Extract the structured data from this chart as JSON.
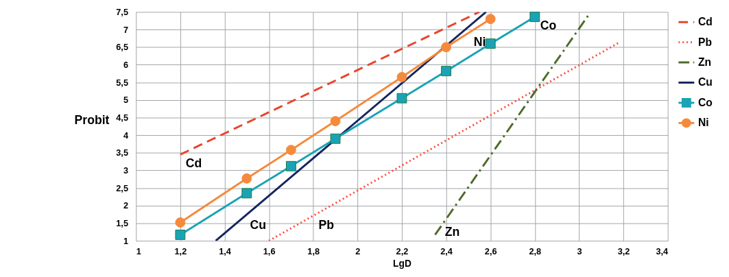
{
  "chart_data": {
    "type": "line",
    "xlabel": "LgD",
    "ylabel": "Probit",
    "xlim": [
      1,
      3.4
    ],
    "ylim": [
      1,
      7.5
    ],
    "xticks": [
      1,
      {
        "value": 1.2,
        "label": "1,2"
      },
      {
        "value": 1.4,
        "label": "1,4"
      },
      {
        "value": 1.6,
        "label": "1,6"
      },
      {
        "value": 1.8,
        "label": "1,8"
      },
      2,
      {
        "value": 2.2,
        "label": "2,2"
      },
      {
        "value": 2.4,
        "label": "2,4"
      },
      {
        "value": 2.6,
        "label": "2,6"
      },
      {
        "value": 2.8,
        "label": "2,8"
      },
      3,
      {
        "value": 3.2,
        "label": "3,2"
      },
      {
        "value": 3.4,
        "label": "3,4"
      }
    ],
    "yticks": [
      1,
      {
        "value": 1.5,
        "label": "1,5"
      },
      2,
      {
        "value": 2.5,
        "label": "2,5"
      },
      3,
      {
        "value": 3.5,
        "label": "3,5"
      },
      4,
      {
        "value": 4.5,
        "label": "4,5"
      },
      5,
      {
        "value": 5.5,
        "label": "5,5"
      },
      6,
      {
        "value": 6.5,
        "label": "6,5"
      },
      7,
      {
        "value": 7.5,
        "label": "7,5"
      }
    ],
    "grid": true,
    "legend": "right",
    "series": [
      {
        "name": "Cd",
        "color": "#e8452c",
        "line_style": "dashed",
        "marker": "none",
        "x": [
          1.2,
          2.55
        ],
        "values": [
          3.45,
          7.5
        ]
      },
      {
        "name": "Pb",
        "color": "#ff4a3a",
        "line_style": "dotted",
        "marker": "none",
        "x": [
          1.6,
          3.18
        ],
        "values": [
          1,
          6.63
        ]
      },
      {
        "name": "Zn",
        "color": "#4e6b2a",
        "line_style": "dashdot",
        "marker": "none",
        "x": [
          2.35,
          3.04
        ],
        "values": [
          1.17,
          7.39
        ]
      },
      {
        "name": "Cu",
        "color": "#14265e",
        "line_style": "solid",
        "marker": "none",
        "x": [
          1.36,
          2.58
        ],
        "values": [
          1,
          7.5
        ]
      },
      {
        "name": "Co",
        "color": "#1aa3b5",
        "line_style": "solid",
        "marker": "square",
        "x": [
          1.2,
          1.5,
          1.7,
          1.9,
          2.2,
          2.4,
          2.6,
          2.8
        ],
        "values": [
          1.17,
          2.35,
          3.12,
          3.9,
          5.05,
          5.82,
          6.6,
          7.36
        ]
      },
      {
        "name": "Ni",
        "color": "#f58a3c",
        "line_style": "solid",
        "marker": "circle",
        "x": [
          1.2,
          1.5,
          1.7,
          1.9,
          2.2,
          2.4,
          2.6
        ],
        "values": [
          1.52,
          2.77,
          3.58,
          4.4,
          5.65,
          6.5,
          7.3
        ]
      }
    ],
    "annotations": [
      {
        "text": "Cd",
        "x": 1.2,
        "y": 3.45
      },
      {
        "text": "Cu",
        "x": 1.49,
        "y": 1.7
      },
      {
        "text": "Pb",
        "x": 1.8,
        "y": 1.7
      },
      {
        "text": "Zn",
        "x": 2.37,
        "y": 1.5
      },
      {
        "text": "Ni",
        "x": 2.5,
        "y": 6.9
      },
      {
        "text": "Co",
        "x": 2.8,
        "y": 7.36
      }
    ]
  }
}
